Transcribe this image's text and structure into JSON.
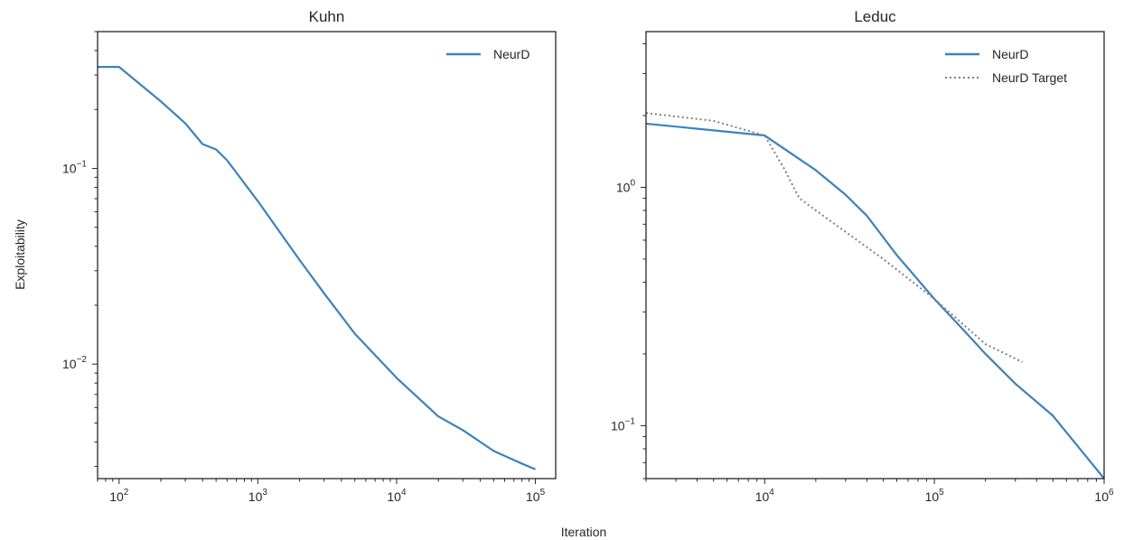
{
  "shared": {
    "xlabel": "Iteration",
    "ylabel": "Exploitability"
  },
  "colors": {
    "neurd": "#3b83bd",
    "target": "#808080"
  },
  "chart_data": [
    {
      "type": "line",
      "title": "Kuhn",
      "xscale": "log",
      "yscale": "log",
      "xlim": [
        70,
        140000
      ],
      "ylim": [
        0.0026,
        0.5
      ],
      "xticks": [
        {
          "base": "10",
          "exp": "2"
        },
        {
          "base": "10",
          "exp": "3"
        },
        {
          "base": "10",
          "exp": "4"
        },
        {
          "base": "10",
          "exp": "5"
        }
      ],
      "yticks": [
        {
          "base": "10",
          "exp": "−1"
        },
        {
          "base": "10",
          "exp": "−2"
        }
      ],
      "legend": "top-right",
      "grid": false,
      "series": [
        {
          "name": "NeurD",
          "style": "solid",
          "x": [
            70,
            100,
            200,
            300,
            400,
            500,
            600,
            1000,
            2000,
            3000,
            5000,
            10000,
            20000,
            30000,
            50000,
            80000,
            100000
          ],
          "y": [
            0.33,
            0.33,
            0.22,
            0.17,
            0.133,
            0.125,
            0.11,
            0.068,
            0.034,
            0.023,
            0.0143,
            0.0085,
            0.0054,
            0.0046,
            0.0036,
            0.0031,
            0.0029
          ]
        }
      ]
    },
    {
      "type": "line",
      "title": "Leduc",
      "xscale": "log",
      "yscale": "log",
      "xlim": [
        2000,
        1000000
      ],
      "ylim": [
        0.06,
        4.5
      ],
      "xticks": [
        {
          "base": "10",
          "exp": "4"
        },
        {
          "base": "10",
          "exp": "5"
        },
        {
          "base": "10",
          "exp": "6"
        }
      ],
      "yticks": [
        {
          "base": "10",
          "exp": "0"
        },
        {
          "base": "10",
          "exp": "−1"
        }
      ],
      "legend": "top-right",
      "grid": false,
      "series": [
        {
          "name": "NeurD",
          "style": "solid",
          "x": [
            2000,
            10000,
            20000,
            30000,
            40000,
            60000,
            100000,
            150000,
            200000,
            300000,
            500000,
            1000000
          ],
          "y": [
            1.85,
            1.65,
            1.18,
            0.93,
            0.76,
            0.52,
            0.34,
            0.25,
            0.2,
            0.15,
            0.11,
            0.06
          ]
        },
        {
          "name": "NeurD Target",
          "style": "dotted",
          "x": [
            2000,
            5000,
            10000,
            13000,
            16000,
            20000,
            30000,
            50000,
            100000,
            200000,
            330000
          ],
          "y": [
            2.05,
            1.9,
            1.65,
            1.2,
            0.9,
            0.8,
            0.65,
            0.5,
            0.34,
            0.22,
            0.185
          ]
        }
      ]
    }
  ]
}
